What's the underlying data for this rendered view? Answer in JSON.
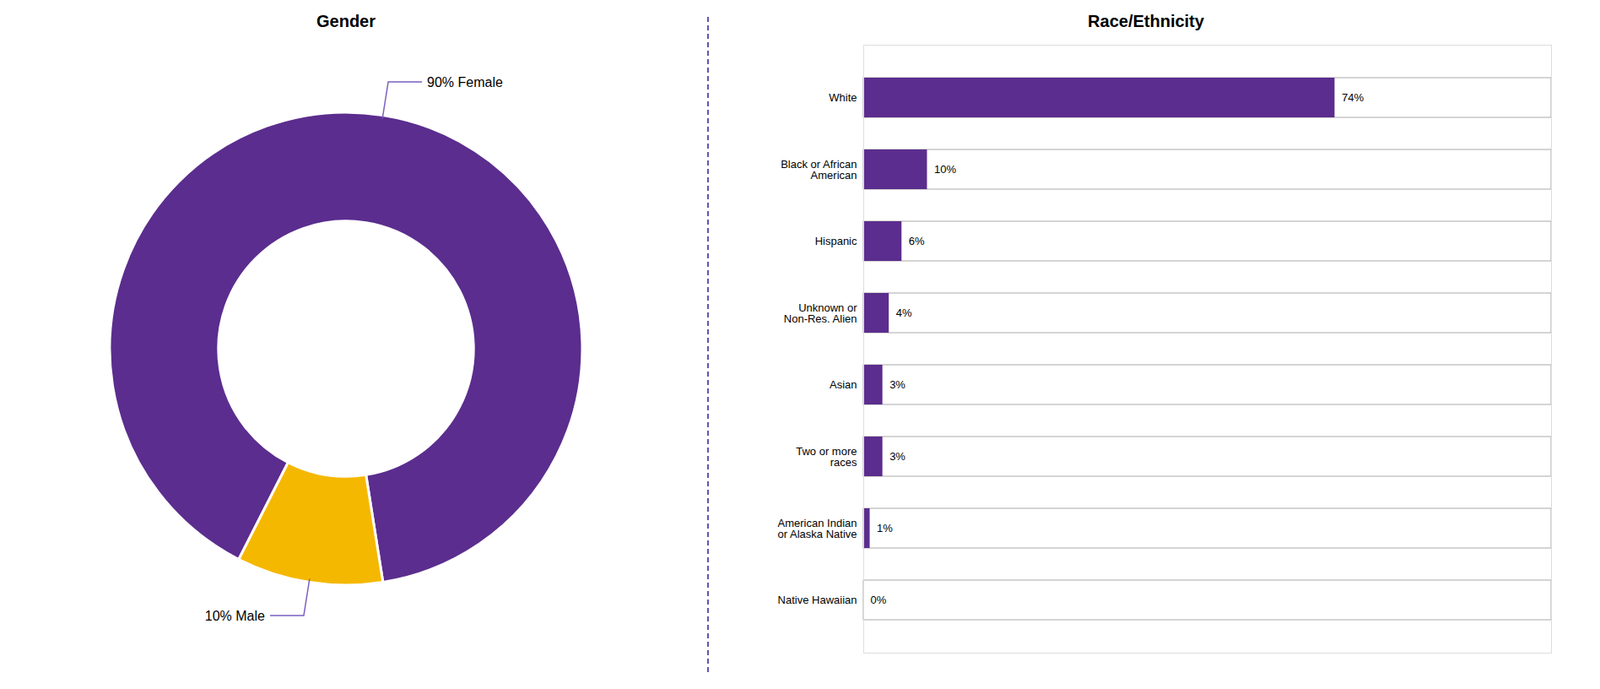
{
  "chart_data": [
    {
      "type": "pie",
      "title": "Gender",
      "values": [
        90,
        10
      ],
      "value_labels": [
        "90% Female",
        "10% Male"
      ],
      "colors": [
        "#5b2d8e",
        "#f5b800"
      ],
      "data_labels": true
    },
    {
      "type": "bar",
      "title": "Race/Ethnicity",
      "orientation": "horizontal",
      "categories": [
        "White",
        "Black or African\nAmerican",
        "Hispanic",
        "Unknown or\nNon-Res. Alien",
        "Asian",
        "Two or more\nraces",
        "American Indian\nor Alaska Native",
        "Native Hawaiian"
      ],
      "values": [
        74,
        10,
        6,
        4,
        3,
        3,
        1,
        0
      ],
      "value_labels": [
        "74%",
        "10%",
        "6%",
        "4%",
        "3%",
        "3%",
        "1%",
        "0%"
      ],
      "color": "#5b2d8e",
      "xlim": [
        0,
        108
      ],
      "data_labels": true,
      "tick_labels": "y",
      "grid": false
    }
  ]
}
